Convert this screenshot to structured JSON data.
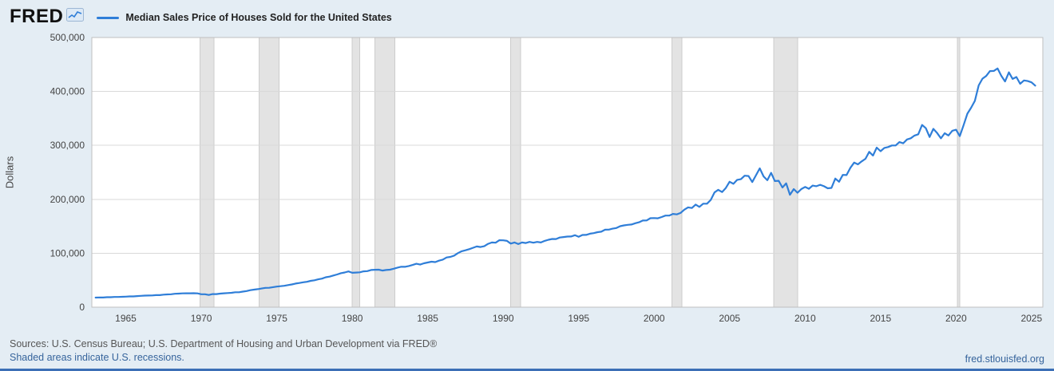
{
  "header": {
    "logo_text": "FRED",
    "logo_icon": "line-chart-icon"
  },
  "chart_data": {
    "type": "line",
    "title": "Median Sales Price of Houses Sold for the United States",
    "xlabel": "",
    "ylabel": "Dollars",
    "frequency": "quarterly",
    "x_start": 1963.0,
    "x_step": 0.25,
    "values": [
      17800,
      18000,
      17900,
      18500,
      18500,
      18900,
      18900,
      19300,
      19600,
      20000,
      19900,
      20600,
      21000,
      21400,
      21600,
      21800,
      22400,
      22400,
      23200,
      23700,
      23900,
      24800,
      25100,
      25600,
      25700,
      25800,
      25900,
      25600,
      23900,
      23900,
      22700,
      24200,
      24300,
      25200,
      25700,
      26200,
      26700,
      27600,
      27600,
      28900,
      29900,
      31500,
      32500,
      33500,
      34600,
      35800,
      36000,
      37200,
      38100,
      38900,
      39600,
      41000,
      42200,
      43800,
      44800,
      46200,
      47000,
      48800,
      49800,
      51700,
      53000,
      55500,
      56700,
      58700,
      60600,
      63000,
      64400,
      66300,
      63700,
      64200,
      64600,
      66400,
      66800,
      68900,
      69400,
      69500,
      67900,
      69000,
      69500,
      71300,
      73300,
      75000,
      74800,
      76300,
      78300,
      80500,
      79000,
      81300,
      82800,
      84300,
      83600,
      86300,
      88200,
      92200,
      93200,
      95500,
      100100,
      103700,
      105400,
      107500,
      110000,
      112500,
      111500,
      113000,
      117500,
      120000,
      119600,
      124100,
      123900,
      122900,
      117900,
      120000,
      117000,
      120000,
      119000,
      121000,
      119500,
      121000,
      120000,
      123000,
      125000,
      126500,
      126300,
      129200,
      130000,
      130900,
      131000,
      133500,
      130400,
      133900,
      134000,
      136300,
      137300,
      139000,
      140000,
      143600,
      143800,
      145600,
      146800,
      150200,
      151700,
      152600,
      153300,
      155600,
      157400,
      160600,
      160800,
      164900,
      165300,
      164800,
      167200,
      169800,
      169800,
      172900,
      172000,
      174700,
      180800,
      185000,
      183900,
      190200,
      186000,
      191800,
      191900,
      198800,
      212700,
      217600,
      213500,
      221000,
      232500,
      228700,
      236100,
      237300,
      243800,
      243200,
      232000,
      244700,
      257400,
      242500,
      235400,
      249100,
      233900,
      234300,
      221900,
      229600,
      208400,
      219000,
      212200,
      219000,
      222900,
      219500,
      225500,
      224300,
      226900,
      224300,
      220400,
      221100,
      238400,
      232600,
      245200,
      245000,
      258400,
      268100,
      264800,
      270200,
      275200,
      288000,
      281000,
      295900,
      289200,
      295300,
      296900,
      299800,
      299800,
      306000,
      303800,
      310900,
      313100,
      318200,
      320500,
      337900,
      331800,
      315600,
      330600,
      322800,
      313000,
      322500,
      318400,
      327100,
      329000,
      317100,
      337500,
      358700,
      369800,
      382600,
      411200,
      423600,
      428700,
      437700,
      438000,
      442600,
      429000,
      418500,
      435400,
      423200,
      426800,
      414200,
      420400,
      419300,
      416900,
      410800
    ],
    "xlim": [
      1962.75,
      2025.75
    ],
    "ylim": [
      0,
      500000
    ],
    "xticks": [
      1965,
      1970,
      1975,
      1980,
      1985,
      1990,
      1995,
      2000,
      2005,
      2010,
      2015,
      2020,
      2025
    ],
    "yticks": [
      0,
      100000,
      200000,
      300000,
      400000,
      500000
    ],
    "grid": "horizontal",
    "legend_position": "top",
    "line_color": "#2f7ed8",
    "recession_fill": "#e3e3e3",
    "recession_edge": "#cccccc",
    "recessions": [
      [
        1969.917,
        1970.833
      ],
      [
        1973.833,
        1975.167
      ],
      [
        1980.0,
        1980.5
      ],
      [
        1981.5,
        1982.833
      ],
      [
        1990.5,
        1991.167
      ],
      [
        2001.167,
        2001.833
      ],
      [
        2007.917,
        2009.5
      ],
      [
        2020.083,
        2020.25
      ]
    ]
  },
  "footer": {
    "sources": "Sources: U.S. Census Bureau; U.S. Department of Housing and Urban Development via FRED®",
    "recession_note": "Shaded areas indicate U.S. recessions.",
    "site_link": "fred.stlouisfed.org"
  },
  "theme": {
    "background": "#e4edf4",
    "plot_background": "#ffffff",
    "gridline": "#d9d9d9",
    "plot_border": "#bfbfbf",
    "axis_text": "#444444",
    "link": "#36649c",
    "accent_bar": "#3c6fb6"
  }
}
